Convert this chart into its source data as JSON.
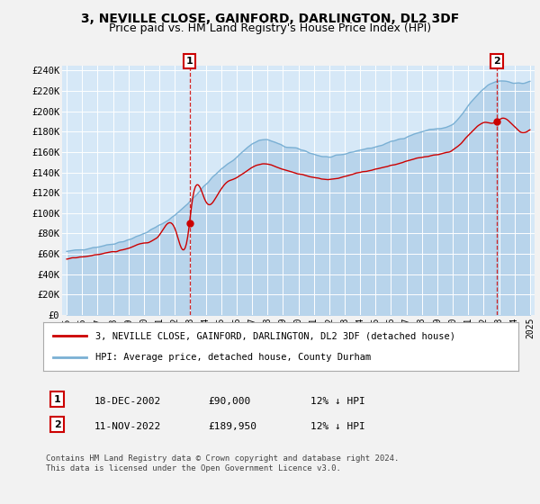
{
  "title": "3, NEVILLE CLOSE, GAINFORD, DARLINGTON, DL2 3DF",
  "subtitle": "Price paid vs. HM Land Registry's House Price Index (HPI)",
  "title_fontsize": 10,
  "subtitle_fontsize": 9,
  "ylim": [
    0,
    245000
  ],
  "yticks": [
    0,
    20000,
    40000,
    60000,
    80000,
    100000,
    120000,
    140000,
    160000,
    180000,
    200000,
    220000,
    240000
  ],
  "ytick_labels": [
    "£0",
    "£20K",
    "£40K",
    "£60K",
    "£80K",
    "£100K",
    "£120K",
    "£140K",
    "£160K",
    "£180K",
    "£200K",
    "£220K",
    "£240K"
  ],
  "plot_bg_color": "#d6e8f7",
  "grid_color": "#ffffff",
  "hpi_color": "#7ab0d4",
  "hpi_fill_color": "#b8d4eb",
  "price_color": "#cc0000",
  "fig_bg_color": "#f2f2f2",
  "transaction1_price": 90000,
  "transaction1_x": 2002.96,
  "transaction2_price": 189950,
  "transaction2_x": 2022.86,
  "legend_label_price": "3, NEVILLE CLOSE, GAINFORD, DARLINGTON, DL2 3DF (detached house)",
  "legend_label_hpi": "HPI: Average price, detached house, County Durham",
  "annotation1_label": "1",
  "annotation1_date_str": "18-DEC-2002",
  "annotation1_price_str": "£90,000",
  "annotation1_hpi_str": "12% ↓ HPI",
  "annotation2_label": "2",
  "annotation2_date_str": "11-NOV-2022",
  "annotation2_price_str": "£189,950",
  "annotation2_hpi_str": "12% ↓ HPI",
  "footer": "Contains HM Land Registry data © Crown copyright and database right 2024.\nThis data is licensed under the Open Government Licence v3.0.",
  "xstart": 1995,
  "xend": 2025,
  "hpi_ctrl_x": [
    1995,
    1996,
    1997,
    1998,
    1999,
    2000,
    2001,
    2002,
    2003,
    2004,
    2005,
    2006,
    2007,
    2008,
    2009,
    2010,
    2011,
    2012,
    2013,
    2014,
    2015,
    2016,
    2017,
    2018,
    2019,
    2020,
    2021,
    2022,
    2023,
    2024,
    2025
  ],
  "hpi_ctrl_y": [
    62000,
    64500,
    67000,
    70000,
    74000,
    80000,
    88000,
    98000,
    112000,
    128000,
    143000,
    155000,
    168000,
    172000,
    166000,
    163000,
    158000,
    155000,
    158000,
    162000,
    165000,
    170000,
    175000,
    180000,
    183000,
    187000,
    205000,
    222000,
    230000,
    228000,
    230000
  ],
  "price_ctrl_x": [
    1995,
    1996,
    1997,
    1998,
    1999,
    2000,
    2001,
    2002,
    2002.96,
    2003,
    2004,
    2005,
    2006,
    2007,
    2008,
    2009,
    2010,
    2011,
    2012,
    2013,
    2014,
    2015,
    2016,
    2017,
    2018,
    2019,
    2020,
    2021,
    2022,
    2022.86,
    2023,
    2024,
    2025
  ],
  "price_ctrl_y": [
    55000,
    57000,
    59500,
    62000,
    65500,
    71000,
    78000,
    86000,
    90000,
    97000,
    111000,
    124000,
    135000,
    145000,
    148000,
    143000,
    139000,
    135000,
    133000,
    136000,
    140000,
    143000,
    147000,
    151000,
    155000,
    158000,
    162000,
    176000,
    189000,
    189950,
    192000,
    185000,
    183000
  ]
}
